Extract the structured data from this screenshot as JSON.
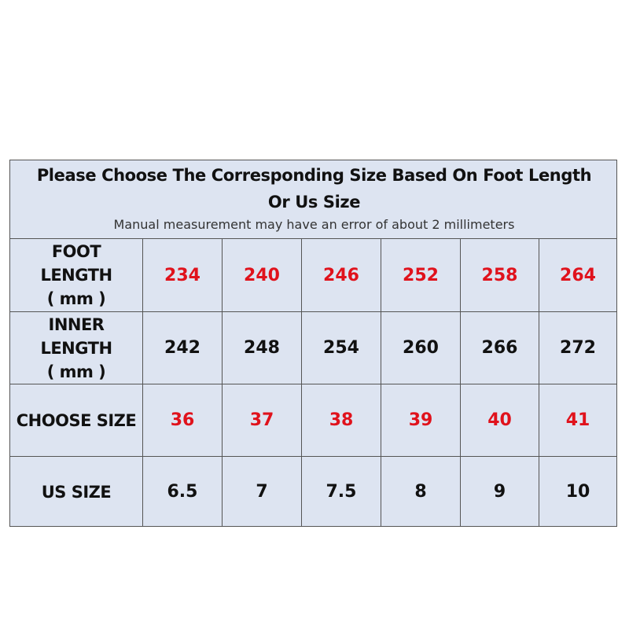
{
  "header": {
    "title": "Please Choose The Corresponding Size Based On Foot Length Or Us Size",
    "subtitle": "Manual measurement may have an error of about 2 millimeters"
  },
  "table": {
    "rows": [
      {
        "label": [
          "FOOT",
          "LENGTH",
          "( mm )"
        ],
        "color": "#e0121c",
        "values": [
          234,
          240,
          246,
          252,
          258,
          264
        ]
      },
      {
        "label": [
          "INNER",
          "LENGTH",
          "( mm )"
        ],
        "color": "#111111",
        "values": [
          242,
          248,
          254,
          260,
          266,
          272
        ]
      },
      {
        "label": [
          "CHOOSE SIZE"
        ],
        "color": "#e0121c",
        "values": [
          36,
          37,
          38,
          39,
          40,
          41
        ]
      },
      {
        "label": [
          "US SIZE"
        ],
        "color": "#111111",
        "values": [
          6.5,
          7,
          7.5,
          8,
          9,
          10
        ]
      }
    ]
  }
}
